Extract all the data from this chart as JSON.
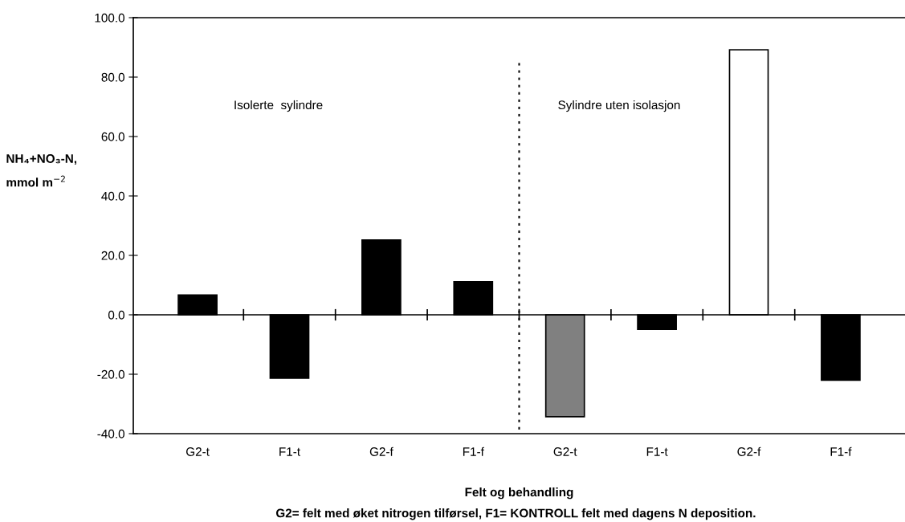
{
  "chart_data": {
    "type": "bar",
    "categories": [
      "G2-t",
      "F1-t",
      "G2-f",
      "F1-f",
      "G2-t",
      "F1-t",
      "G2-f",
      "F1-f"
    ],
    "values": [
      6.7,
      -21.3,
      25.2,
      11.1,
      -34.3,
      -4.9,
      89.2,
      -22.0
    ],
    "colors": [
      "#000000",
      "#000000",
      "#000000",
      "#000000",
      "#808080",
      "#000000",
      "#ffffff",
      "#000000"
    ],
    "xlabel": "Felt og behandling",
    "ylabel": "NH₄+NO₃-N,\nmmol m$^{−2}$",
    "ylim": [
      -40,
      100
    ],
    "yticks": [
      {
        "value": -40,
        "label": "-40.0"
      },
      {
        "value": -20,
        "label": "-20.0"
      },
      {
        "value": 0,
        "label": "0.0"
      },
      {
        "value": 20,
        "label": "20.0"
      },
      {
        "value": 40,
        "label": "40.0"
      },
      {
        "value": 60,
        "label": "60.0"
      },
      {
        "value": 80,
        "label": "80.0"
      },
      {
        "value": 100,
        "label": "100.0"
      }
    ],
    "annotations": [
      "Isolerte  sylindre",
      "Sylindre uten isolasjon",
      "G2= felt med øket nitrogen tilførsel, F1= KONTROLL felt med dagens N deposition."
    ],
    "legend": false
  }
}
